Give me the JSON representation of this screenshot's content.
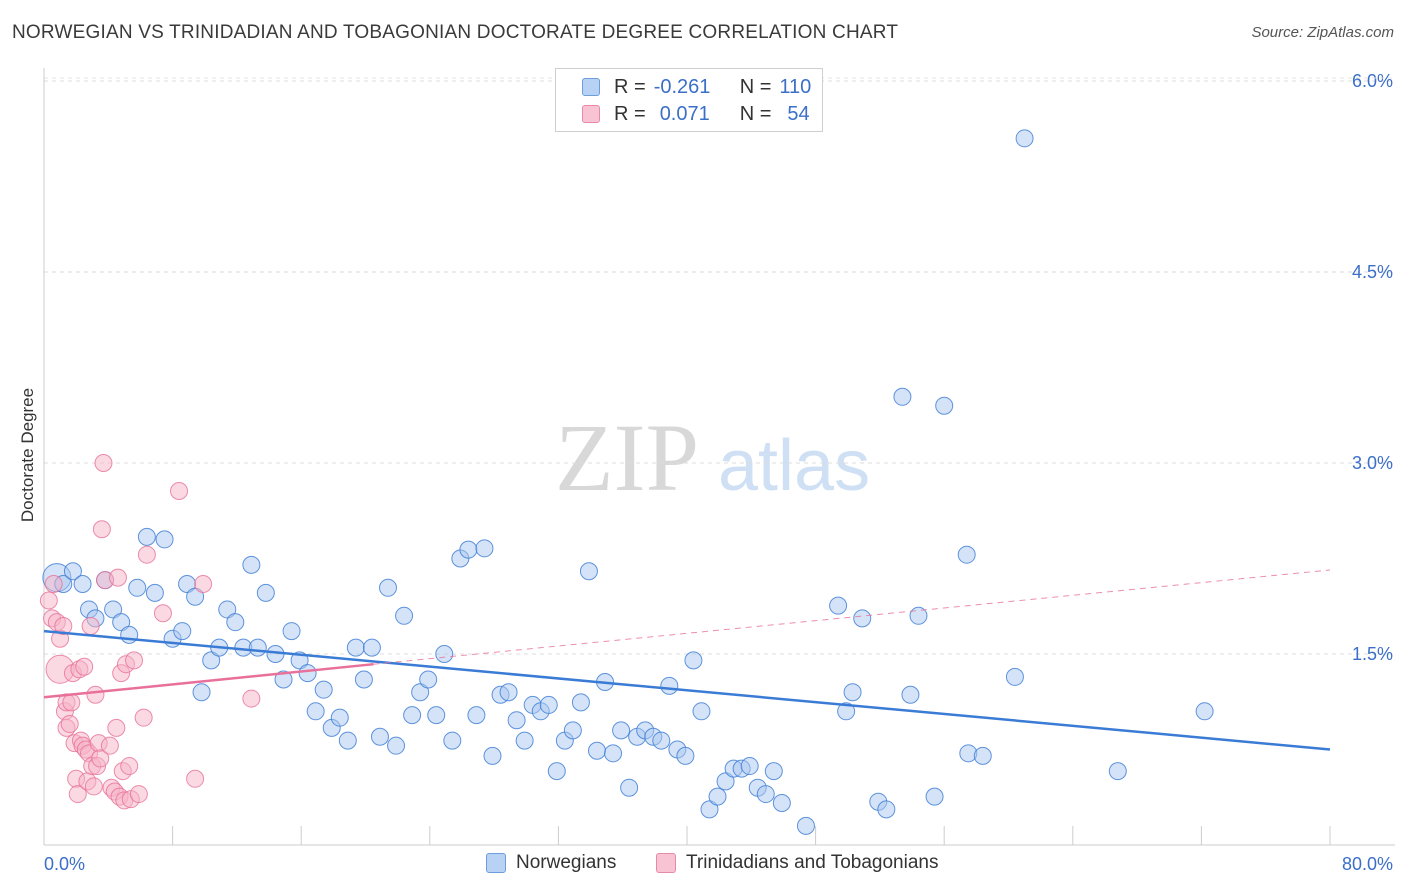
{
  "title": "NORWEGIAN VS TRINIDADIAN AND TOBAGONIAN DOCTORATE DEGREE CORRELATION CHART",
  "source": "Source: ZipAtlas.com",
  "watermark": {
    "zip": "ZIP",
    "atlas": "atlas"
  },
  "legend": {
    "r_label": "R =",
    "n_label": "N =",
    "blue": {
      "r": "-0.261",
      "n": "110"
    },
    "pink": {
      "r": "0.071",
      "n": "54"
    }
  },
  "bottom_legend": {
    "blue": "Norwegians",
    "pink": "Trinidadians and Tobagonians"
  },
  "colors": {
    "blue": "#3a7bd5",
    "blue_fill": "#a9c8f0",
    "pink": "#e8709a",
    "pink_fill": "#f5b3c8",
    "axis_text": "#3b6fc8"
  },
  "chart_data": {
    "type": "scatter",
    "title": "NORWEGIAN VS TRINIDADIAN AND TOBAGONIAN DOCTORATE DEGREE CORRELATION CHART",
    "xlabel": "",
    "ylabel": "Doctorate Degree",
    "xlim": [
      0,
      80
    ],
    "ylim": [
      0,
      6.2
    ],
    "x_tick_labels": [
      "0.0%",
      "80.0%"
    ],
    "y_ticks": [
      1.5,
      3.0,
      4.5,
      6.0
    ],
    "y_tick_labels": [
      "1.5%",
      "3.0%",
      "4.5%",
      "6.0%"
    ],
    "grid": "horizontal dashed",
    "series": [
      {
        "name": "Norwegians",
        "color": "blue",
        "points": [
          [
            0.8,
            2.1
          ],
          [
            1.2,
            2.05
          ],
          [
            1.8,
            2.15
          ],
          [
            2.4,
            2.05
          ],
          [
            2.8,
            1.85
          ],
          [
            3.2,
            1.78
          ],
          [
            3.8,
            2.08
          ],
          [
            4.3,
            1.85
          ],
          [
            4.8,
            1.75
          ],
          [
            5.3,
            1.65
          ],
          [
            5.8,
            2.02
          ],
          [
            6.4,
            2.42
          ],
          [
            6.9,
            1.98
          ],
          [
            7.5,
            2.4
          ],
          [
            8.0,
            1.62
          ],
          [
            8.6,
            1.68
          ],
          [
            8.9,
            2.05
          ],
          [
            9.4,
            1.95
          ],
          [
            9.8,
            1.2
          ],
          [
            10.4,
            1.45
          ],
          [
            10.9,
            1.55
          ],
          [
            11.4,
            1.85
          ],
          [
            11.9,
            1.75
          ],
          [
            12.4,
            1.55
          ],
          [
            12.9,
            2.2
          ],
          [
            13.3,
            1.55
          ],
          [
            13.8,
            1.98
          ],
          [
            14.4,
            1.5
          ],
          [
            14.9,
            1.3
          ],
          [
            15.4,
            1.68
          ],
          [
            15.9,
            1.45
          ],
          [
            16.4,
            1.35
          ],
          [
            16.9,
            1.05
          ],
          [
            17.4,
            1.22
          ],
          [
            17.9,
            0.92
          ],
          [
            18.4,
            1.0
          ],
          [
            18.9,
            0.82
          ],
          [
            19.4,
            1.55
          ],
          [
            19.9,
            1.3
          ],
          [
            20.4,
            1.55
          ],
          [
            20.9,
            0.85
          ],
          [
            21.4,
            2.02
          ],
          [
            21.9,
            0.78
          ],
          [
            22.4,
            1.8
          ],
          [
            22.9,
            1.02
          ],
          [
            23.4,
            1.2
          ],
          [
            23.9,
            1.3
          ],
          [
            24.4,
            1.02
          ],
          [
            24.9,
            1.5
          ],
          [
            25.4,
            0.82
          ],
          [
            25.9,
            2.25
          ],
          [
            26.4,
            2.32
          ],
          [
            26.9,
            1.02
          ],
          [
            27.4,
            2.33
          ],
          [
            27.9,
            0.7
          ],
          [
            28.4,
            1.18
          ],
          [
            28.9,
            1.2
          ],
          [
            29.4,
            0.98
          ],
          [
            29.9,
            0.82
          ],
          [
            30.4,
            1.1
          ],
          [
            30.9,
            1.05
          ],
          [
            31.4,
            1.1
          ],
          [
            31.9,
            0.58
          ],
          [
            32.4,
            0.82
          ],
          [
            32.9,
            0.9
          ],
          [
            33.4,
            1.12
          ],
          [
            33.9,
            2.15
          ],
          [
            34.4,
            0.74
          ],
          [
            34.9,
            1.28
          ],
          [
            35.4,
            0.72
          ],
          [
            35.9,
            0.9
          ],
          [
            36.4,
            0.45
          ],
          [
            36.9,
            0.85
          ],
          [
            37.4,
            0.9
          ],
          [
            37.9,
            0.85
          ],
          [
            38.4,
            0.82
          ],
          [
            38.9,
            1.25
          ],
          [
            39.4,
            0.75
          ],
          [
            39.9,
            0.7
          ],
          [
            40.4,
            1.45
          ],
          [
            40.9,
            1.05
          ],
          [
            41.4,
            0.28
          ],
          [
            41.9,
            0.38
          ],
          [
            42.4,
            0.5
          ],
          [
            42.9,
            0.6
          ],
          [
            43.4,
            0.6
          ],
          [
            43.9,
            0.62
          ],
          [
            44.4,
            0.45
          ],
          [
            44.9,
            0.4
          ],
          [
            45.4,
            0.58
          ],
          [
            45.9,
            0.33
          ],
          [
            47.4,
            0.15
          ],
          [
            49.4,
            1.88
          ],
          [
            49.9,
            1.05
          ],
          [
            50.3,
            1.2
          ],
          [
            50.9,
            1.78
          ],
          [
            51.9,
            0.34
          ],
          [
            52.4,
            0.28
          ],
          [
            53.4,
            3.52
          ],
          [
            53.9,
            1.18
          ],
          [
            54.4,
            1.8
          ],
          [
            55.4,
            0.38
          ],
          [
            56.0,
            3.45
          ],
          [
            57.4,
            2.28
          ],
          [
            57.5,
            0.72
          ],
          [
            58.4,
            0.7
          ],
          [
            60.4,
            1.32
          ],
          [
            61.0,
            5.55
          ],
          [
            66.8,
            0.58
          ],
          [
            72.2,
            1.05
          ]
        ]
      },
      {
        "name": "Trinidadians and Tobagonians",
        "color": "pink",
        "points": [
          [
            0.3,
            1.92
          ],
          [
            0.5,
            1.78
          ],
          [
            0.6,
            2.05
          ],
          [
            0.8,
            1.75
          ],
          [
            1.0,
            1.38
          ],
          [
            1.0,
            1.62
          ],
          [
            1.2,
            1.72
          ],
          [
            1.3,
            1.05
          ],
          [
            1.4,
            1.12
          ],
          [
            1.4,
            0.92
          ],
          [
            1.6,
            0.95
          ],
          [
            1.7,
            1.12
          ],
          [
            1.8,
            1.35
          ],
          [
            1.9,
            0.8
          ],
          [
            2.0,
            0.52
          ],
          [
            2.1,
            0.4
          ],
          [
            2.2,
            1.38
          ],
          [
            2.3,
            0.82
          ],
          [
            2.4,
            0.78
          ],
          [
            2.5,
            1.4
          ],
          [
            2.6,
            0.75
          ],
          [
            2.7,
            0.5
          ],
          [
            2.8,
            0.72
          ],
          [
            2.9,
            1.72
          ],
          [
            3.0,
            0.62
          ],
          [
            3.1,
            0.46
          ],
          [
            3.2,
            1.18
          ],
          [
            3.3,
            0.62
          ],
          [
            3.4,
            0.8
          ],
          [
            3.5,
            0.68
          ],
          [
            3.6,
            2.48
          ],
          [
            3.7,
            3.0
          ],
          [
            3.8,
            2.08
          ],
          [
            4.1,
            0.78
          ],
          [
            4.2,
            0.45
          ],
          [
            4.4,
            0.42
          ],
          [
            4.5,
            0.92
          ],
          [
            4.6,
            2.1
          ],
          [
            4.7,
            0.38
          ],
          [
            4.8,
            1.35
          ],
          [
            4.9,
            0.58
          ],
          [
            5.0,
            0.35
          ],
          [
            5.1,
            1.42
          ],
          [
            5.3,
            0.62
          ],
          [
            5.4,
            0.36
          ],
          [
            5.6,
            1.45
          ],
          [
            5.9,
            0.4
          ],
          [
            6.2,
            1.0
          ],
          [
            6.4,
            2.28
          ],
          [
            7.4,
            1.82
          ],
          [
            8.4,
            2.78
          ],
          [
            9.4,
            0.52
          ],
          [
            9.9,
            2.05
          ],
          [
            12.9,
            1.15
          ]
        ]
      }
    ],
    "trend_lines": [
      {
        "series": "Norwegians",
        "x": [
          0,
          80
        ],
        "y": [
          1.68,
          0.75
        ],
        "style": "solid"
      },
      {
        "series": "Trinidadians and Tobagonians",
        "x": [
          0,
          20.5
        ],
        "y": [
          1.16,
          1.42
        ],
        "style": "solid"
      },
      {
        "series": "Trinidadians and Tobagonians",
        "x": [
          20.5,
          80
        ],
        "y": [
          1.42,
          2.16
        ],
        "style": "dashed"
      }
    ]
  }
}
